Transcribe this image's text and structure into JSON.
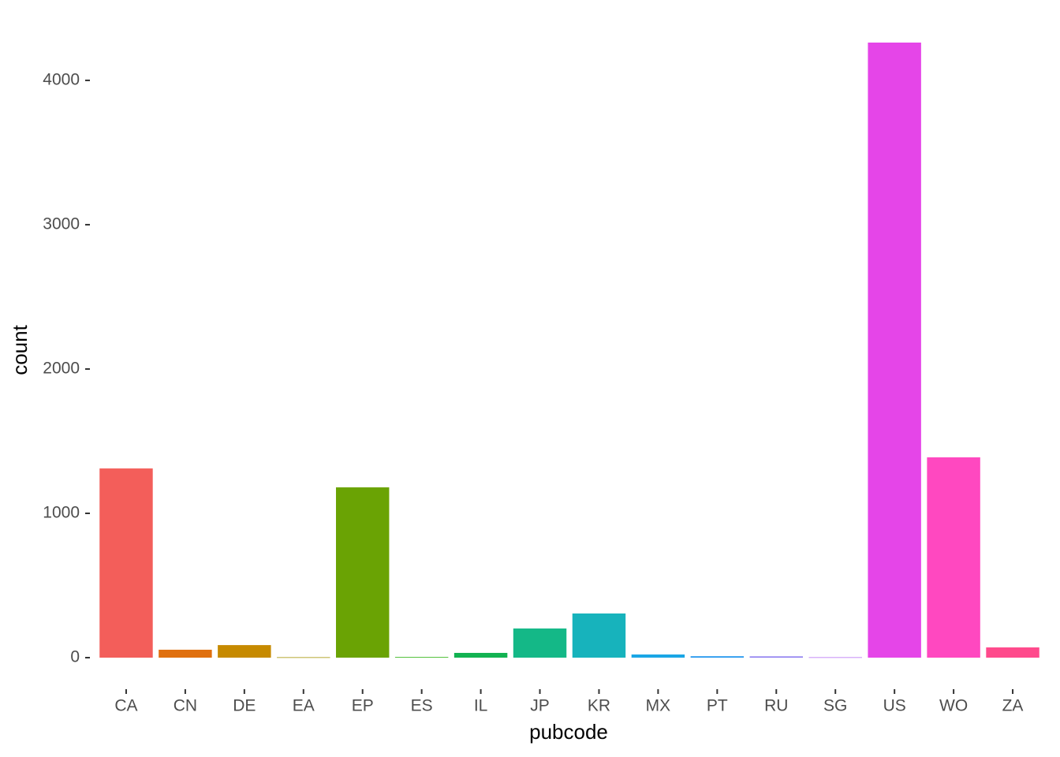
{
  "chart_data": {
    "type": "bar",
    "x_label": "pubcode",
    "y_label": "count",
    "categories": [
      "CA",
      "CN",
      "DE",
      "EA",
      "EP",
      "ES",
      "IL",
      "JP",
      "KR",
      "MX",
      "PT",
      "RU",
      "SG",
      "US",
      "WO",
      "ZA"
    ],
    "values": [
      1311,
      55,
      87,
      3,
      1180,
      4,
      33,
      202,
      306,
      22,
      10,
      9,
      3,
      4262,
      1388,
      71
    ],
    "colors": [
      "#F35E5A",
      "#E0700F",
      "#C68A00",
      "#A39200",
      "#6AA304",
      "#1EB000",
      "#12B251",
      "#14B887",
      "#17B3BC",
      "#1AA6E5",
      "#2999EE",
      "#8F7FF0",
      "#B76FF5",
      "#E545E8",
      "#FF48C0",
      "#FF4A8C"
    ],
    "ylim": [
      -213,
      4475
    ],
    "yticks": [
      0,
      1000,
      2000,
      3000,
      4000
    ],
    "grid": false
  }
}
